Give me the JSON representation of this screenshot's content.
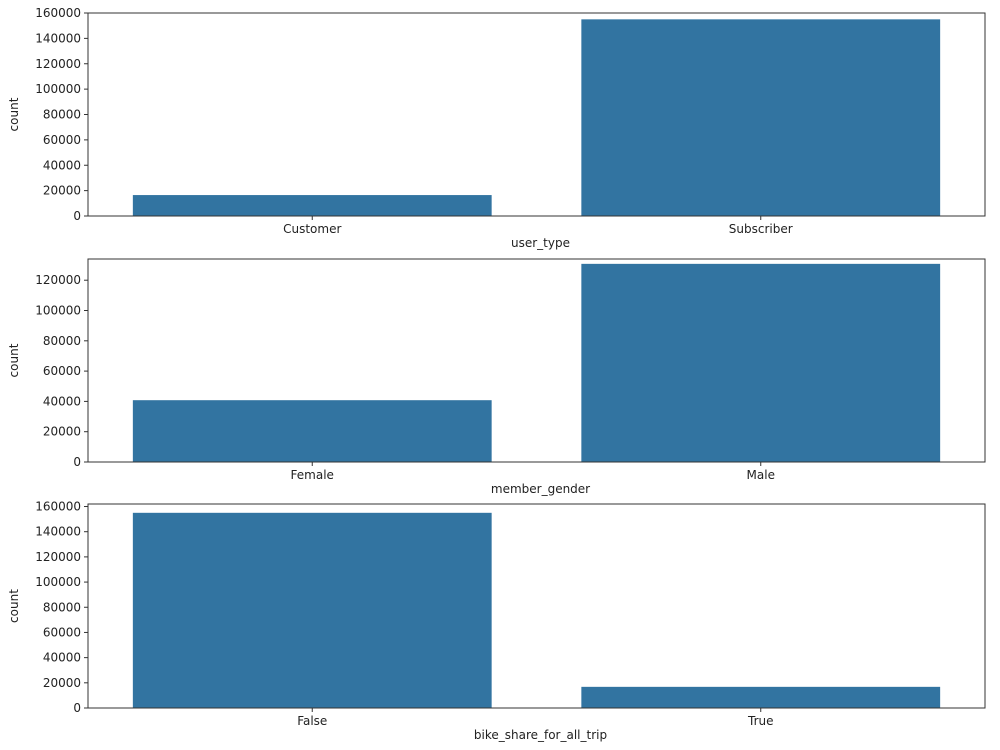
{
  "chart_data": [
    {
      "type": "bar",
      "categories": [
        "Customer",
        "Subscriber"
      ],
      "values": [
        16500,
        155000
      ],
      "xlabel": "user_type",
      "ylabel": "count",
      "ylim": [
        0,
        160000
      ],
      "yticks": [
        0,
        20000,
        40000,
        60000,
        80000,
        100000,
        120000,
        140000,
        160000
      ],
      "ytick_labels": [
        "0",
        "20000",
        "40000",
        "60000",
        "80000",
        "100000",
        "120000",
        "140000",
        "160000"
      ],
      "bar_color": "#3274a1",
      "grid": false
    },
    {
      "type": "bar",
      "categories": [
        "Female",
        "Male"
      ],
      "values": [
        40800,
        130800
      ],
      "xlabel": "member_gender",
      "ylabel": "count",
      "ylim": [
        0,
        134000
      ],
      "yticks": [
        0,
        20000,
        40000,
        60000,
        80000,
        100000,
        120000
      ],
      "ytick_labels": [
        "0",
        "20000",
        "40000",
        "60000",
        "80000",
        "100000",
        "120000"
      ],
      "bar_color": "#3274a1",
      "grid": false
    },
    {
      "type": "bar",
      "categories": [
        "False",
        "True"
      ],
      "values": [
        155000,
        16800
      ],
      "xlabel": "bike_share_for_all_trip",
      "ylabel": "count",
      "ylim": [
        0,
        162000
      ],
      "yticks": [
        0,
        20000,
        40000,
        60000,
        80000,
        100000,
        120000,
        140000,
        160000
      ],
      "ytick_labels": [
        "0",
        "20000",
        "40000",
        "60000",
        "80000",
        "100000",
        "120000",
        "140000",
        "160000"
      ],
      "bar_color": "#3274a1",
      "grid": false
    }
  ]
}
